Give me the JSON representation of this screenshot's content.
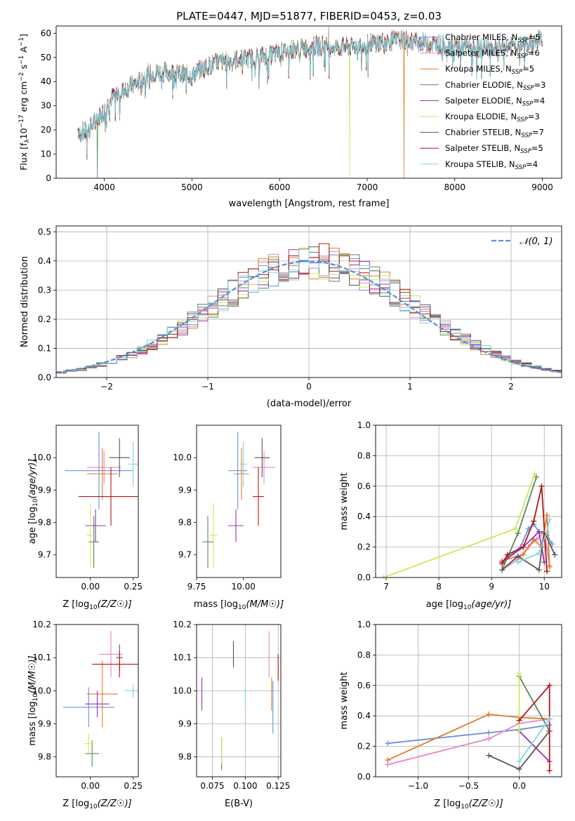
{
  "colors": {
    "Chabrier MILES": "#6a8fe0",
    "Salpeter MILES": "#e887c0",
    "Kroupa MILES": "#e07b26",
    "Chabrier ELODIE": "#5a8a5a",
    "Salpeter ELODIE": "#9b2fb4",
    "Kroupa ELODIE": "#cce85a",
    "Chabrier STELIB": "#555555",
    "Salpeter STELIB": "#b01818",
    "Kroupa STELIB": "#7fd6e0",
    "grid": "#b0b0b0",
    "normal_curve": "#5a8fd6"
  },
  "chart_data": [
    {
      "id": "spectrum",
      "type": "line",
      "title": "PLATE=0447, MJD=51877, FIBERID=0453, z=0.03",
      "xlabel": "wavelength [Angstrom, rest frame]",
      "ylabel": "Flux [f_λ10^-17 erg cm^-2 s^-1 A^-1]",
      "xlim": [
        3450,
        9220
      ],
      "ylim": [
        0,
        63
      ],
      "xticks": [
        4000,
        5000,
        6000,
        7000,
        8000,
        9000
      ],
      "yticks": [
        0,
        10,
        20,
        30,
        40,
        50,
        60
      ],
      "grid": false,
      "legend_position": "top-right",
      "legend": [
        {
          "label": "Chabrier MILES, N",
          "sub": "SSP",
          "tail": "=5"
        },
        {
          "label": "Salpeter MILES, N",
          "sub": "SSP",
          "tail": "=6"
        },
        {
          "label": "Kroupa MILES, N",
          "sub": "SSP",
          "tail": "=5"
        },
        {
          "label": "Chabrier ELODIE, N",
          "sub": "SSP",
          "tail": "=3"
        },
        {
          "label": "Salpeter ELODIE, N",
          "sub": "SSP",
          "tail": "=4"
        },
        {
          "label": "Kroupa ELODIE, N",
          "sub": "SSP",
          "tail": "=3"
        },
        {
          "label": "Chabrier STELIB, N",
          "sub": "SSP",
          "tail": "=7"
        },
        {
          "label": "Salpeter STELIB, N",
          "sub": "SSP",
          "tail": "=5"
        },
        {
          "label": "Kroupa STELIB, N",
          "sub": "SSP",
          "tail": "=4"
        }
      ],
      "continuum": [
        [
          3700,
          20
        ],
        [
          3800,
          19
        ],
        [
          3900,
          24
        ],
        [
          4000,
          28
        ],
        [
          4100,
          34
        ],
        [
          4200,
          36
        ],
        [
          4300,
          38
        ],
        [
          4400,
          40
        ],
        [
          4500,
          43
        ],
        [
          4700,
          44
        ],
        [
          4900,
          43
        ],
        [
          5000,
          42
        ],
        [
          5100,
          45
        ],
        [
          5300,
          48
        ],
        [
          5500,
          49
        ],
        [
          5700,
          50
        ],
        [
          5900,
          51
        ],
        [
          6100,
          53
        ],
        [
          6300,
          54
        ],
        [
          6500,
          55
        ],
        [
          6700,
          54
        ],
        [
          6900,
          55
        ],
        [
          7100,
          56
        ],
        [
          7300,
          57
        ],
        [
          7500,
          57
        ],
        [
          7700,
          56
        ],
        [
          7900,
          55
        ],
        [
          8100,
          54
        ],
        [
          8300,
          54
        ],
        [
          8500,
          54
        ],
        [
          8700,
          55
        ],
        [
          8900,
          56
        ],
        [
          9000,
          58
        ]
      ],
      "features": [
        {
          "series": "Chabrier ELODIE",
          "x": 3920,
          "y": 0
        },
        {
          "series": "Kroupa ELODIE",
          "x": 6800,
          "y": 0
        },
        {
          "series": "Kroupa MILES",
          "x": 7420,
          "y": 0
        },
        {
          "series": "data",
          "x": 6560,
          "y": 63
        }
      ]
    },
    {
      "id": "residuals",
      "type": "histogram",
      "xlabel": "(data-model)/error",
      "ylabel": "Normed distribution",
      "xlim": [
        -2.5,
        2.5
      ],
      "ylim": [
        0,
        0.52
      ],
      "xticks": [
        -2,
        -1,
        0,
        1,
        2
      ],
      "yticks": [
        0.0,
        0.1,
        0.2,
        0.3,
        0.4,
        0.5
      ],
      "grid": true,
      "bin_width": 0.1,
      "legend": [
        {
          "label": "𝒩(0, 1)"
        }
      ],
      "legend_position": "top-right"
    },
    {
      "id": "age-vs-Z",
      "type": "scatter",
      "xlabel": "Z [log10(Z/Z☉)]",
      "ylabel": "age  [log10(age/yr)]",
      "xlim": [
        -0.2,
        0.28
      ],
      "ylim": [
        9.63,
        10.1
      ],
      "xticks": [
        0.0,
        0.25
      ],
      "xticklabels": [
        "0.00",
        "0.25"
      ],
      "yticks": [
        9.7,
        9.8,
        9.9,
        10.0
      ],
      "yticklabels": [
        "9.7",
        "9.8",
        "9.9",
        "10.0"
      ],
      "grid": false,
      "points": [
        {
          "series": "Chabrier MILES",
          "x": 0.05,
          "xerr": 0.2,
          "y": 9.96,
          "yerr": 0.12
        },
        {
          "series": "Salpeter MILES",
          "x": 0.08,
          "xerr": 0.1,
          "y": 9.97,
          "yerr": 0.05
        },
        {
          "series": "Kroupa MILES",
          "x": 0.07,
          "xerr": 0.09,
          "y": 9.95,
          "yerr": 0.08
        },
        {
          "series": "Chabrier ELODIE",
          "x": 0.02,
          "xerr": 0.03,
          "y": 9.74,
          "yerr": 0.08
        },
        {
          "series": "Salpeter ELODIE",
          "x": 0.03,
          "xerr": 0.06,
          "y": 9.79,
          "yerr": 0.05
        },
        {
          "series": "Kroupa ELODIE",
          "x": 0.0,
          "xerr": 0.02,
          "y": 9.76,
          "yerr": 0.1
        },
        {
          "series": "Chabrier STELIB",
          "x": 0.17,
          "xerr": 0.06,
          "y": 10.0,
          "yerr": 0.06
        },
        {
          "series": "Salpeter STELIB",
          "x": 0.12,
          "xerr": 0.19,
          "y": 9.88,
          "yerr": 0.09
        },
        {
          "series": "Kroupa STELIB",
          "x": 0.25,
          "xerr": 0.03,
          "y": 9.98,
          "yerr": 0.07
        }
      ]
    },
    {
      "id": "age-vs-mass",
      "type": "scatter",
      "xlabel": "mass [log10(M/M☉)]",
      "ylabel": "",
      "xlim": [
        9.75,
        10.2
      ],
      "ylim": [
        9.63,
        10.1
      ],
      "xticks": [
        9.75,
        10.0
      ],
      "xticklabels": [
        "9.75",
        "10.00"
      ],
      "yticks": [
        9.7,
        9.8,
        9.9,
        10.0
      ],
      "yticklabels": [
        "9.7",
        "9.8",
        "9.9",
        "10.0"
      ],
      "grid": false,
      "points": [
        {
          "series": "Chabrier MILES",
          "x": 9.97,
          "xerr": 0.05,
          "y": 9.96,
          "yerr": 0.12
        },
        {
          "series": "Salpeter MILES",
          "x": 10.11,
          "xerr": 0.06,
          "y": 9.97,
          "yerr": 0.05
        },
        {
          "series": "Kroupa MILES",
          "x": 9.99,
          "xerr": 0.04,
          "y": 9.95,
          "yerr": 0.08
        },
        {
          "series": "Chabrier ELODIE",
          "x": 9.81,
          "xerr": 0.03,
          "y": 9.74,
          "yerr": 0.08
        },
        {
          "series": "Salpeter ELODIE",
          "x": 9.96,
          "xerr": 0.04,
          "y": 9.79,
          "yerr": 0.05
        },
        {
          "series": "Kroupa ELODIE",
          "x": 9.84,
          "xerr": 0.02,
          "y": 9.76,
          "yerr": 0.1
        },
        {
          "series": "Chabrier STELIB",
          "x": 10.1,
          "xerr": 0.04,
          "y": 10.0,
          "yerr": 0.06
        },
        {
          "series": "Salpeter STELIB",
          "x": 10.08,
          "xerr": 0.03,
          "y": 9.88,
          "yerr": 0.09
        },
        {
          "series": "Kroupa STELIB",
          "x": 10.0,
          "xerr": 0.02,
          "y": 9.98,
          "yerr": 0.07
        }
      ]
    },
    {
      "id": "mass-weight-vs-age",
      "type": "line",
      "xlabel": "age  [log10(age/yr)]",
      "ylabel": "mass weight",
      "xlim": [
        6.8,
        10.33
      ],
      "ylim": [
        0,
        1
      ],
      "xticks": [
        7,
        8,
        9,
        10
      ],
      "yticks": [
        0.0,
        0.2,
        0.4,
        0.6,
        0.8,
        1.0
      ],
      "grid": true,
      "series": [
        {
          "name": "Chabrier MILES",
          "points": [
            [
              9.2,
              0.1
            ],
            [
              9.55,
              0.2
            ],
            [
              9.7,
              0.32
            ],
            [
              9.8,
              0.35
            ],
            [
              9.9,
              0.3
            ],
            [
              10.05,
              0.28
            ],
            [
              10.15,
              0.22
            ]
          ]
        },
        {
          "name": "Salpeter MILES",
          "points": [
            [
              9.2,
              0.05
            ],
            [
              9.5,
              0.12
            ],
            [
              9.7,
              0.2
            ],
            [
              9.85,
              0.25
            ],
            [
              10.0,
              0.3
            ],
            [
              10.1,
              0.08
            ]
          ]
        },
        {
          "name": "Kroupa MILES",
          "points": [
            [
              9.2,
              0.11
            ],
            [
              9.6,
              0.15
            ],
            [
              9.8,
              0.25
            ],
            [
              9.95,
              0.2
            ],
            [
              10.05,
              0.41
            ],
            [
              10.1,
              0.07
            ]
          ]
        },
        {
          "name": "Chabrier ELODIE",
          "points": [
            [
              9.2,
              0.05
            ],
            [
              9.5,
              0.29
            ],
            [
              9.85,
              0.66
            ]
          ]
        },
        {
          "name": "Salpeter ELODIE",
          "points": [
            [
              9.2,
              0.1
            ],
            [
              9.6,
              0.2
            ],
            [
              9.9,
              0.3
            ],
            [
              10.0,
              0.1
            ]
          ]
        },
        {
          "name": "Kroupa ELODIE",
          "points": [
            [
              6.95,
              0.0
            ],
            [
              9.45,
              0.32
            ],
            [
              9.82,
              0.68
            ]
          ]
        },
        {
          "name": "Chabrier STELIB",
          "points": [
            [
              9.2,
              0.05
            ],
            [
              9.5,
              0.14
            ],
            [
              9.9,
              0.05
            ],
            [
              10.0,
              0.3
            ],
            [
              10.2,
              0.15
            ]
          ]
        },
        {
          "name": "Salpeter STELIB",
          "points": [
            [
              9.2,
              0.09
            ],
            [
              9.3,
              0.15
            ],
            [
              9.6,
              0.2
            ],
            [
              9.8,
              0.37
            ],
            [
              9.95,
              0.6
            ],
            [
              10.05,
              0.04
            ]
          ]
        },
        {
          "name": "Kroupa STELIB",
          "points": [
            [
              9.5,
              0.1
            ],
            [
              9.9,
              0.16
            ],
            [
              10.05,
              0.3
            ],
            [
              10.1,
              0.38
            ]
          ]
        }
      ]
    },
    {
      "id": "mass-vs-Z",
      "type": "scatter",
      "xlabel": "Z [log10(Z/Z☉)]",
      "ylabel": "mass [log10(M/M☉)]",
      "xlim": [
        -0.2,
        0.28
      ],
      "ylim": [
        9.74,
        10.2
      ],
      "xticks": [
        0.0,
        0.25
      ],
      "xticklabels": [
        "0.00",
        "0.25"
      ],
      "yticks": [
        9.8,
        9.9,
        10.0,
        10.1,
        10.2
      ],
      "yticklabels": [
        "9.8",
        "9.9",
        "10.0",
        "10.1",
        "10.2"
      ],
      "grid": false,
      "points": [
        {
          "series": "Chabrier MILES",
          "x": -0.01,
          "xerr": 0.15,
          "y": 9.95,
          "yerr": 0.06
        },
        {
          "series": "Salpeter MILES",
          "x": 0.12,
          "xerr": 0.07,
          "y": 10.11,
          "yerr": 0.07
        },
        {
          "series": "Kroupa MILES",
          "x": 0.07,
          "xerr": 0.09,
          "y": 9.99,
          "yerr": 0.1
        },
        {
          "series": "Chabrier ELODIE",
          "x": 0.01,
          "xerr": 0.04,
          "y": 9.81,
          "yerr": 0.04
        },
        {
          "series": "Salpeter ELODIE",
          "x": 0.04,
          "xerr": 0.07,
          "y": 9.96,
          "yerr": 0.04
        },
        {
          "series": "Kroupa ELODIE",
          "x": -0.01,
          "xerr": 0.03,
          "y": 9.84,
          "yerr": 0.03
        },
        {
          "series": "Chabrier STELIB",
          "x": 0.17,
          "xerr": 0.02,
          "y": 10.1,
          "yerr": 0.04
        },
        {
          "series": "Salpeter STELIB",
          "x": 0.17,
          "xerr": 0.16,
          "y": 10.08,
          "yerr": 0.04
        },
        {
          "series": "Kroupa STELIB",
          "x": 0.25,
          "xerr": 0.05,
          "y": 10.0,
          "yerr": 0.02
        }
      ]
    },
    {
      "id": "mass-vs-EBV",
      "type": "scatter",
      "xlabel": "E(B-V)",
      "ylabel": "",
      "xlim": [
        0.063,
        0.127
      ],
      "ylim": [
        9.74,
        10.2
      ],
      "xticks": [
        0.075,
        0.1,
        0.125
      ],
      "xticklabels": [
        "0.075",
        "0.100",
        "0.125"
      ],
      "yticks": [
        9.8,
        9.9,
        10.0,
        10.1,
        10.2
      ],
      "yticklabels": [
        "9.8",
        "9.9",
        "10.0",
        "10.1",
        "10.2"
      ],
      "grid": true,
      "points": [
        {
          "series": "Chabrier MILES",
          "x": 0.121,
          "y": 9.95,
          "yerr": 0.08
        },
        {
          "series": "Salpeter MILES",
          "x": 0.118,
          "y": 10.11,
          "yerr": 0.07
        },
        {
          "series": "Kroupa MILES",
          "x": 0.12,
          "y": 9.99,
          "yerr": 0.05
        },
        {
          "series": "Chabrier ELODIE",
          "x": 0.082,
          "y": 9.81,
          "yerr": 0.05
        },
        {
          "series": "Salpeter ELODIE",
          "x": 0.067,
          "y": 9.99,
          "yerr": 0.05
        },
        {
          "series": "Kroupa ELODIE",
          "x": 0.082,
          "y": 9.82,
          "yerr": 0.04
        },
        {
          "series": "Chabrier STELIB",
          "x": 0.091,
          "y": 10.11,
          "yerr": 0.04
        },
        {
          "series": "Salpeter STELIB",
          "x": 0.125,
          "y": 10.07,
          "yerr": 0.04
        },
        {
          "series": "Kroupa STELIB",
          "x": 0.1,
          "y": 9.98,
          "yerr": 0.03
        }
      ]
    },
    {
      "id": "mass-weight-vs-Z",
      "type": "line",
      "xlabel": "Z [log10(Z/Z☉)]",
      "ylabel": "mass weight",
      "xlim": [
        -1.42,
        0.42
      ],
      "ylim": [
        0,
        1
      ],
      "xticks": [
        -1.0,
        -0.5,
        0.0
      ],
      "xticklabels": [
        "−1.0",
        "−0.5",
        "0.0"
      ],
      "yticks": [
        0.0,
        0.2,
        0.4,
        0.6,
        0.8,
        1.0
      ],
      "grid": true,
      "series": [
        {
          "name": "Chabrier MILES",
          "points": [
            [
              -1.3,
              0.22
            ],
            [
              -0.3,
              0.29
            ],
            [
              0.0,
              0.31
            ],
            [
              0.3,
              0.34
            ]
          ]
        },
        {
          "name": "Salpeter MILES",
          "points": [
            [
              -1.3,
              0.08
            ],
            [
              -0.3,
              0.25
            ],
            [
              0.0,
              0.35
            ],
            [
              0.3,
              0.38
            ]
          ]
        },
        {
          "name": "Kroupa MILES",
          "points": [
            [
              -1.3,
              0.11
            ],
            [
              -0.3,
              0.41
            ],
            [
              0.0,
              0.39
            ],
            [
              0.3,
              0.38
            ]
          ]
        },
        {
          "name": "Chabrier ELODIE",
          "points": [
            [
              0.0,
              0.66
            ],
            [
              0.3,
              0.3
            ]
          ]
        },
        {
          "name": "Salpeter ELODIE",
          "points": [
            [
              0.0,
              0.3
            ],
            [
              0.3,
              0.1
            ]
          ]
        },
        {
          "name": "Kroupa ELODIE",
          "points": [
            [
              0.0,
              0.68
            ],
            [
              0.0,
              0.3
            ]
          ]
        },
        {
          "name": "Chabrier STELIB",
          "points": [
            [
              -0.3,
              0.14
            ],
            [
              0.0,
              0.05
            ],
            [
              0.3,
              0.3
            ]
          ]
        },
        {
          "name": "Salpeter STELIB",
          "points": [
            [
              0.0,
              0.37
            ],
            [
              0.3,
              0.6
            ],
            [
              0.3,
              0.04
            ]
          ]
        },
        {
          "name": "Kroupa STELIB",
          "points": [
            [
              0.0,
              0.1
            ],
            [
              0.3,
              0.38
            ]
          ]
        }
      ]
    }
  ]
}
